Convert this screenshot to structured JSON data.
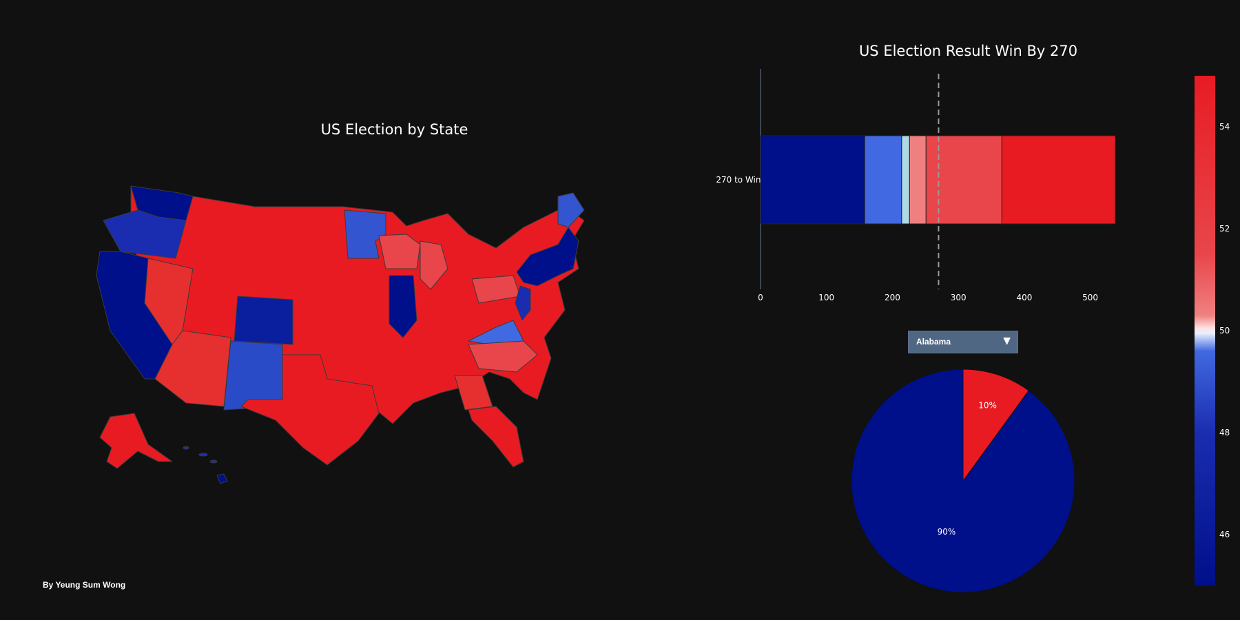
{
  "map": {
    "title": "US Election by State",
    "credit": "By Yeung Sum Wong"
  },
  "dropdown": {
    "selected": "Alabama"
  },
  "colors": {
    "dark_blue": "#000F8A",
    "blue": "#4169E1",
    "light_blue": "#ADD8E6",
    "light_red": "#F08080",
    "mid_red": "#E8464B",
    "red": "#E81B23",
    "background": "#111111"
  },
  "chart_data": [
    {
      "type": "bar",
      "orientation": "horizontal-stacked",
      "title": "US Election Result Win By 270",
      "category": "270 to Win",
      "segments": [
        {
          "start": 0,
          "end": 158,
          "color": "#000F8A"
        },
        {
          "start": 158,
          "end": 214,
          "color": "#4169E1"
        },
        {
          "start": 214,
          "end": 226,
          "color": "#ADD8E6"
        },
        {
          "start": 226,
          "end": 251,
          "color": "#F08080"
        },
        {
          "start": 251,
          "end": 366,
          "color": "#E8464B"
        },
        {
          "start": 366,
          "end": 538,
          "color": "#E81B23"
        }
      ],
      "threshold": 270,
      "xlim": [
        0,
        538
      ],
      "xticks": [
        0,
        100,
        200,
        300,
        400,
        500
      ]
    },
    {
      "type": "pie",
      "values": [
        90,
        10
      ],
      "labels": [
        "90%",
        "10%"
      ],
      "colors": [
        "#000F8A",
        "#E81B23"
      ]
    },
    {
      "type": "heatmap",
      "colorbar": {
        "range": [
          45,
          55
        ],
        "ticks": [
          46,
          48,
          50,
          52,
          54
        ]
      }
    }
  ]
}
